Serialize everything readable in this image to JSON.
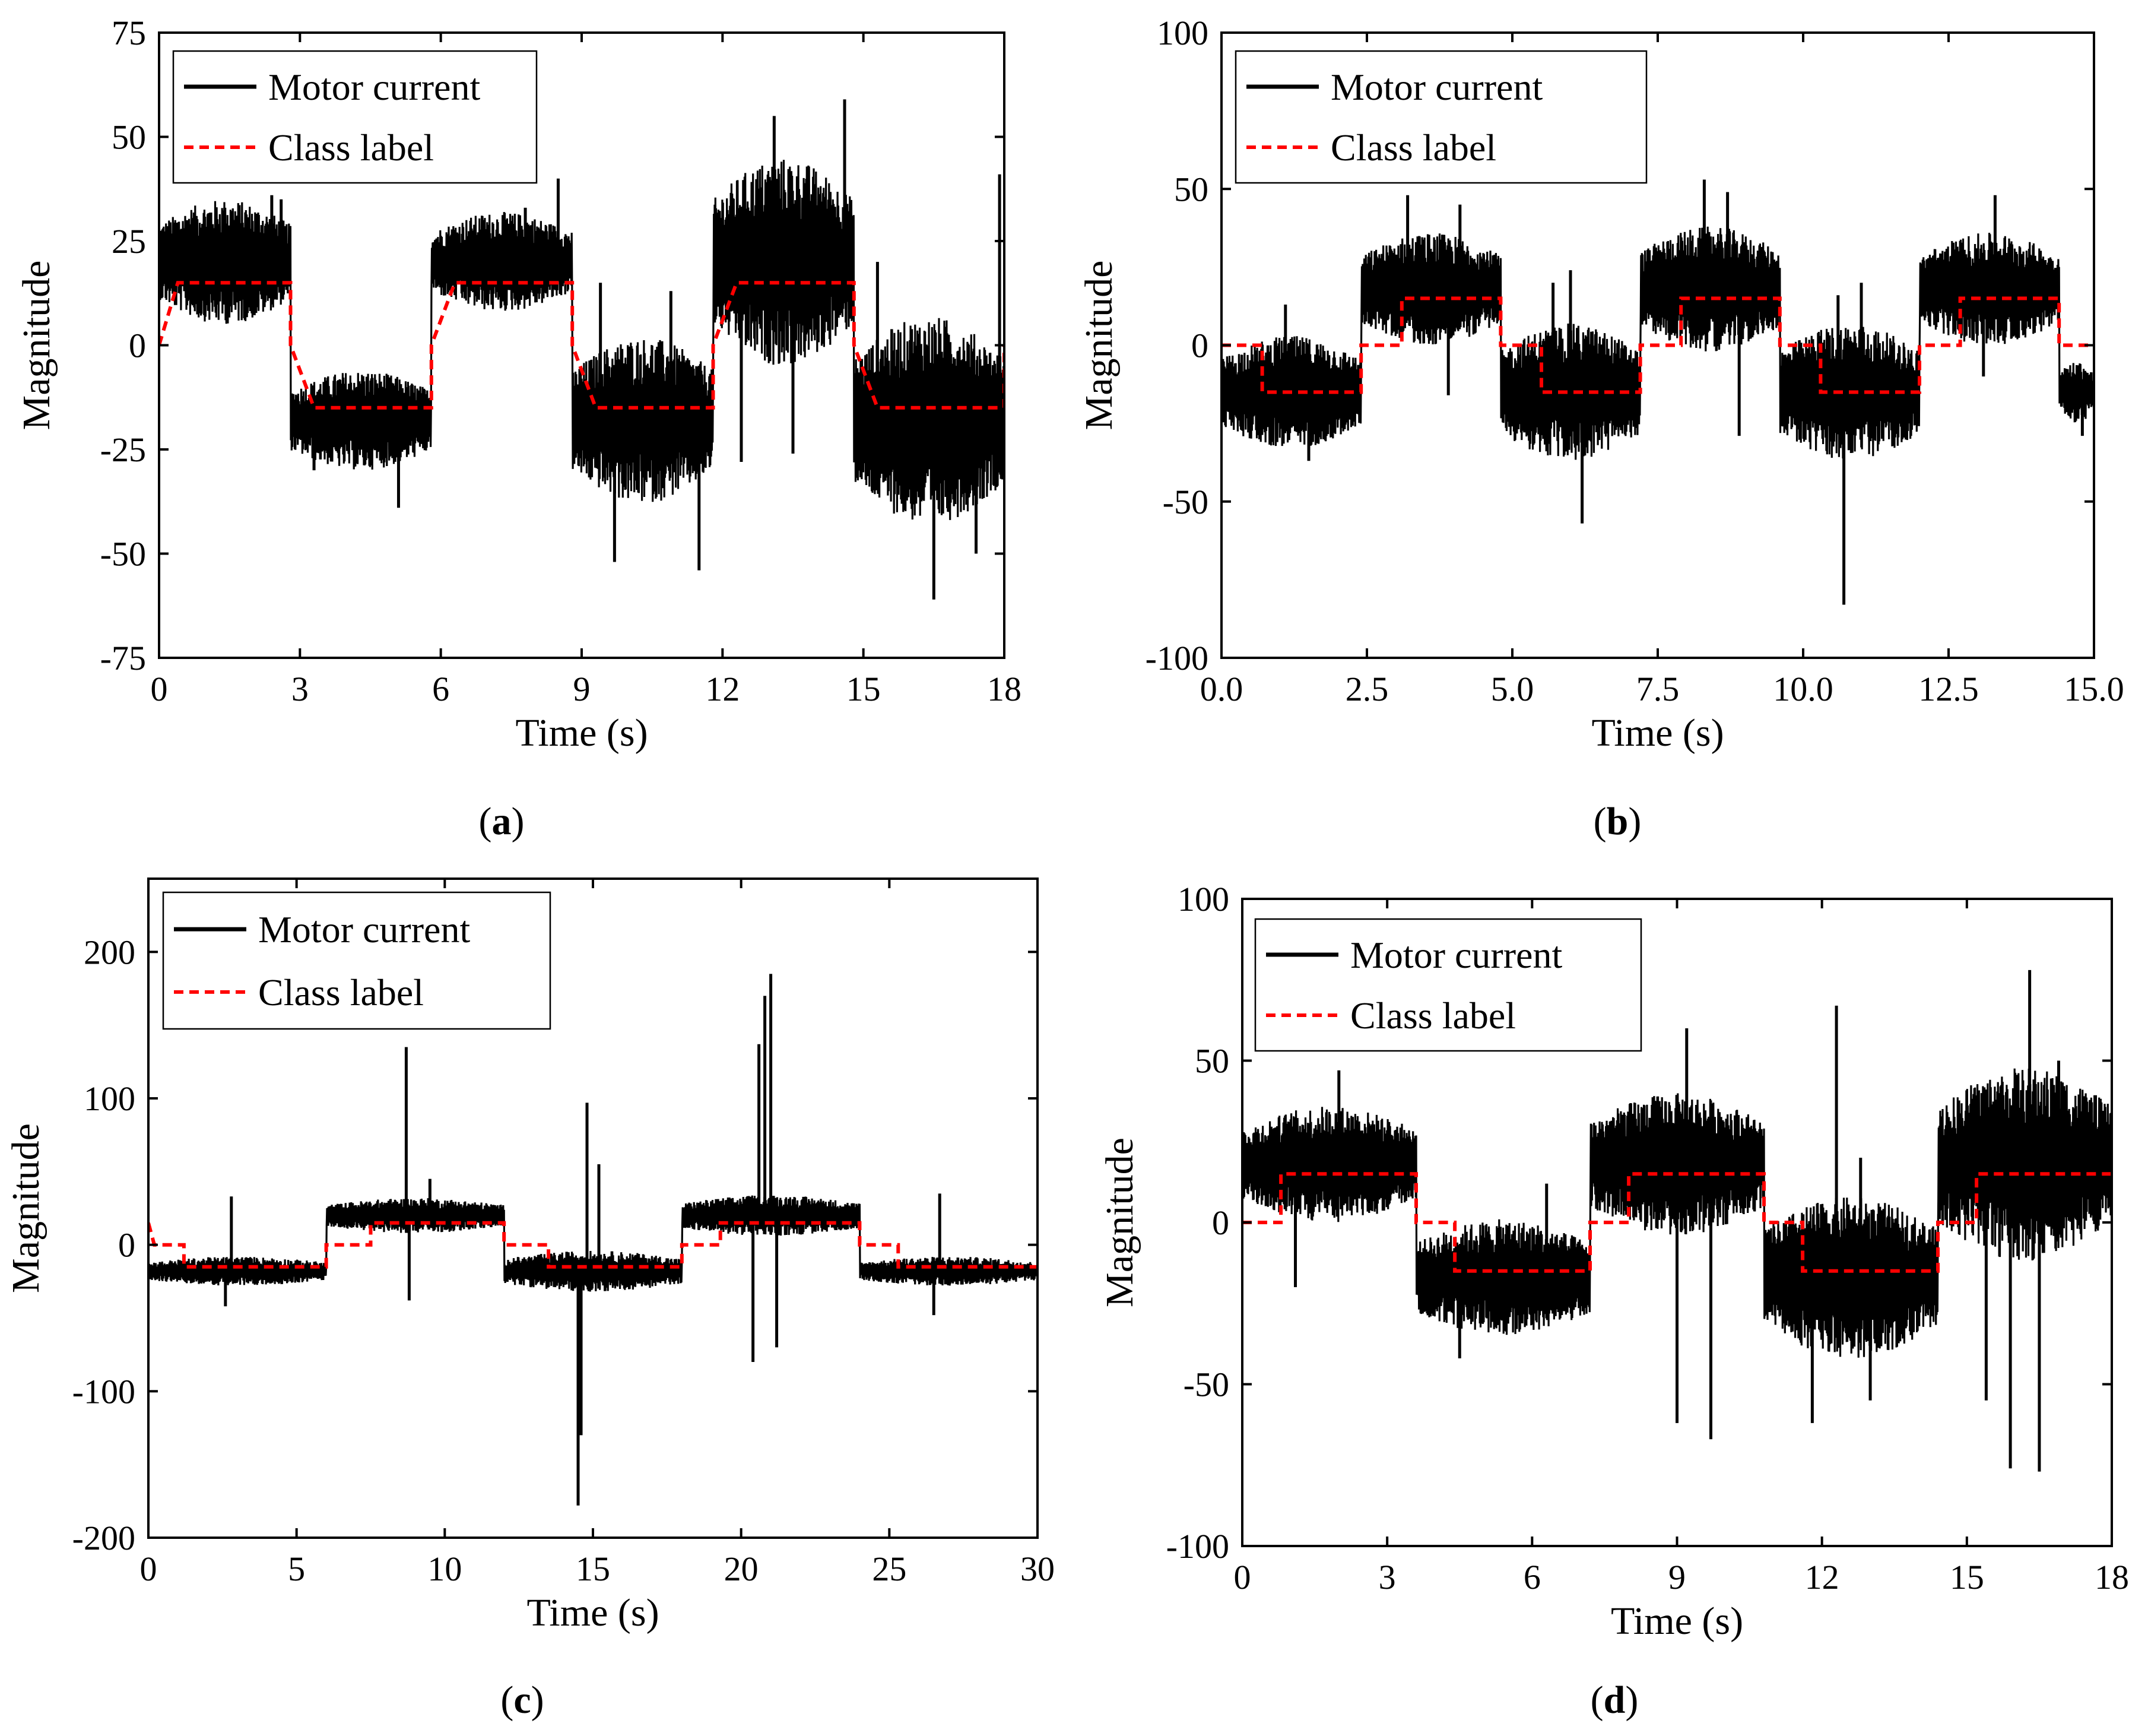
{
  "figure": {
    "caption_letters": [
      "a",
      "b",
      "c",
      "d"
    ]
  },
  "chart_data": [
    {
      "panel": "a",
      "type": "line",
      "xlabel": "Time (s)",
      "ylabel": "Magnitude",
      "xlim": [
        0,
        18
      ],
      "ylim": [
        -75,
        75
      ],
      "xticks": [
        0,
        3,
        6,
        9,
        12,
        15,
        18
      ],
      "yticks": [
        -75,
        -50,
        -25,
        0,
        25,
        50,
        75
      ],
      "xtick_labels": [
        "0",
        "3",
        "6",
        "9",
        "12",
        "15",
        "18"
      ],
      "ytick_labels": [
        "-75",
        "-50",
        "-25",
        "0",
        "25",
        "50",
        "75"
      ],
      "legend": {
        "position": "top-left",
        "entries": [
          "Motor current",
          "Class label"
        ]
      },
      "series": [
        {
          "name": "Motor current",
          "style": "solid",
          "color": "#000000",
          "segments": [
            {
              "t0": 0,
              "t1": 2.8,
              "level": 20,
              "spread": 15,
              "spikes": [
                [
                  0.6,
                  30
                ],
                [
                  1.4,
                  33
                ],
                [
                  2.4,
                  36
                ],
                [
                  2.6,
                  35
                ]
              ]
            },
            {
              "t0": 2.8,
              "t1": 5.8,
              "level": -18,
              "spread": 12,
              "spikes": [
                [
                  5.1,
                  -39
                ],
                [
                  3.3,
                  -30
                ]
              ]
            },
            {
              "t0": 5.8,
              "t1": 8.8,
              "level": 20,
              "spread": 12,
              "spikes": [
                [
                  8.5,
                  40
                ],
                [
                  7.8,
                  33
                ]
              ]
            },
            {
              "t0": 8.8,
              "t1": 11.8,
              "level": -18,
              "spread": 20,
              "spikes": [
                [
                  9.4,
                  15
                ],
                [
                  10.9,
                  13
                ],
                [
                  11.5,
                  -54
                ],
                [
                  9.7,
                  -52
                ]
              ]
            },
            {
              "t0": 11.8,
              "t1": 14.8,
              "level": 20,
              "spread": 25,
              "spikes": [
                [
                  13.1,
                  55
                ],
                [
                  14.6,
                  59
                ],
                [
                  12.4,
                  -28
                ],
                [
                  13.5,
                  -26
                ]
              ]
            },
            {
              "t0": 14.8,
              "t1": 18,
              "level": -18,
              "spread": 25,
              "spikes": [
                [
                  15.3,
                  20
                ],
                [
                  17.9,
                  41
                ],
                [
                  16.5,
                  -61
                ],
                [
                  17.4,
                  -50
                ]
              ]
            }
          ]
        },
        {
          "name": "Class label",
          "style": "dashed",
          "color": "#ff0000",
          "steps": [
            [
              0,
              0
            ],
            [
              0.4,
              15
            ],
            [
              2.8,
              15
            ],
            [
              2.8,
              0
            ],
            [
              3.3,
              -15
            ],
            [
              5.8,
              -15
            ],
            [
              5.8,
              0
            ],
            [
              6.3,
              15
            ],
            [
              8.8,
              15
            ],
            [
              8.8,
              0
            ],
            [
              9.3,
              -15
            ],
            [
              11.8,
              -15
            ],
            [
              11.8,
              0
            ],
            [
              12.3,
              15
            ],
            [
              14.8,
              15
            ],
            [
              14.8,
              0
            ],
            [
              15.3,
              -15
            ],
            [
              18,
              -15
            ],
            [
              18,
              0
            ]
          ]
        }
      ]
    },
    {
      "panel": "b",
      "type": "line",
      "xlabel": "Time (s)",
      "ylabel": "Magnitude",
      "xlim": [
        0,
        15
      ],
      "ylim": [
        -100,
        100
      ],
      "xticks": [
        0,
        2.5,
        5,
        7.5,
        10,
        12.5,
        15
      ],
      "yticks": [
        -100,
        -50,
        0,
        50,
        100
      ],
      "xtick_labels": [
        "0.0",
        "2.5",
        "5.0",
        "7.5",
        "10.0",
        "12.5",
        "15.0"
      ],
      "ytick_labels": [
        "-100",
        "-50",
        "0",
        "50",
        "100"
      ],
      "legend": {
        "position": "top-left",
        "entries": [
          "Motor current",
          "Class label"
        ]
      },
      "series": [
        {
          "name": "Motor current",
          "style": "solid",
          "color": "#000000",
          "segments": [
            {
              "t0": 0,
              "t1": 2.4,
              "level": -15,
              "spread": 18,
              "spikes": [
                [
                  1.1,
                  13
                ],
                [
                  1.5,
                  -37
                ]
              ]
            },
            {
              "t0": 2.4,
              "t1": 4.8,
              "level": 18,
              "spread": 18,
              "spikes": [
                [
                  3.2,
                  48
                ],
                [
                  4.1,
                  45
                ],
                [
                  3.9,
                  -16
                ]
              ]
            },
            {
              "t0": 4.8,
              "t1": 7.2,
              "level": -15,
              "spread": 22,
              "spikes": [
                [
                  6.2,
                  -57
                ],
                [
                  5.7,
                  20
                ],
                [
                  6.0,
                  24
                ]
              ]
            },
            {
              "t0": 7.2,
              "t1": 9.6,
              "level": 18,
              "spread": 20,
              "spikes": [
                [
                  8.3,
                  53
                ],
                [
                  8.9,
                  -29
                ],
                [
                  8.7,
                  49
                ]
              ]
            },
            {
              "t0": 9.6,
              "t1": 12.0,
              "level": -15,
              "spread": 22,
              "spikes": [
                [
                  10.7,
                  -83
                ],
                [
                  11.0,
                  20
                ],
                [
                  10.6,
                  16
                ]
              ]
            },
            {
              "t0": 12.0,
              "t1": 14.4,
              "level": 18,
              "spread": 18,
              "spikes": [
                [
                  13.3,
                  48
                ],
                [
                  13.1,
                  -10
                ]
              ]
            },
            {
              "t0": 14.4,
              "t1": 15,
              "level": -15,
              "spread": 10,
              "spikes": [
                [
                  14.8,
                  -29
                ]
              ]
            }
          ]
        },
        {
          "name": "Class label",
          "style": "dashed",
          "color": "#ff0000",
          "steps": [
            [
              0,
              0
            ],
            [
              0.7,
              0
            ],
            [
              0.7,
              -15
            ],
            [
              2.4,
              -15
            ],
            [
              2.4,
              0
            ],
            [
              3.1,
              0
            ],
            [
              3.1,
              15
            ],
            [
              4.8,
              15
            ],
            [
              4.8,
              0
            ],
            [
              5.5,
              0
            ],
            [
              5.5,
              -15
            ],
            [
              7.2,
              -15
            ],
            [
              7.2,
              0
            ],
            [
              7.9,
              0
            ],
            [
              7.9,
              15
            ],
            [
              9.6,
              15
            ],
            [
              9.6,
              0
            ],
            [
              10.3,
              0
            ],
            [
              10.3,
              -15
            ],
            [
              12.0,
              -15
            ],
            [
              12.0,
              0
            ],
            [
              12.7,
              0
            ],
            [
              12.7,
              15
            ],
            [
              14.4,
              15
            ],
            [
              14.4,
              0
            ],
            [
              15,
              0
            ]
          ]
        }
      ]
    },
    {
      "panel": "c",
      "type": "line",
      "xlabel": "Time (s)",
      "ylabel": "Magnitude",
      "xlim": [
        0,
        30
      ],
      "ylim": [
        -200,
        250
      ],
      "xticks": [
        0,
        5,
        10,
        15,
        20,
        25,
        30
      ],
      "yticks": [
        -200,
        -100,
        0,
        100,
        200
      ],
      "xtick_labels": [
        "0",
        "5",
        "10",
        "15",
        "20",
        "25",
        "30"
      ],
      "ytick_labels": [
        "-200",
        "-100",
        "0",
        "100",
        "200"
      ],
      "legend": {
        "position": "top-left",
        "entries": [
          "Motor current",
          "Class label"
        ]
      },
      "series": [
        {
          "name": "Motor current",
          "style": "solid",
          "color": "#000000",
          "segments": [
            {
              "t0": 0,
              "t1": 6,
              "level": -18,
              "spread": 10,
              "spikes": [
                [
                  2.8,
                  33
                ],
                [
                  2.6,
                  -42
                ]
              ]
            },
            {
              "t0": 6,
              "t1": 12,
              "level": 20,
              "spread": 12,
              "spikes": [
                [
                  8.7,
                  135
                ],
                [
                  8.8,
                  -38
                ],
                [
                  9.5,
                  45
                ]
              ]
            },
            {
              "t0": 12,
              "t1": 18,
              "level": -18,
              "spread": 14,
              "spikes": [
                [
                  14.5,
                  -178
                ],
                [
                  14.8,
                  97
                ],
                [
                  14.6,
                  -130
                ],
                [
                  15.2,
                  55
                ]
              ]
            },
            {
              "t0": 18,
              "t1": 24,
              "level": 20,
              "spread": 14,
              "spikes": [
                [
                  21.0,
                  185
                ],
                [
                  20.8,
                  170
                ],
                [
                  20.4,
                  -80
                ],
                [
                  21.2,
                  -70
                ],
                [
                  20.6,
                  137
                ]
              ]
            },
            {
              "t0": 24,
              "t1": 30,
              "level": -18,
              "spread": 10,
              "spikes": [
                [
                  26.7,
                  35
                ],
                [
                  26.5,
                  -48
                ]
              ]
            }
          ]
        },
        {
          "name": "Class label",
          "style": "dashed",
          "color": "#ff0000",
          "steps": [
            [
              0,
              15
            ],
            [
              0.2,
              0
            ],
            [
              1.2,
              0
            ],
            [
              1.2,
              -15
            ],
            [
              6,
              -15
            ],
            [
              6,
              0
            ],
            [
              7.5,
              0
            ],
            [
              7.5,
              15
            ],
            [
              12,
              15
            ],
            [
              12,
              0
            ],
            [
              13.5,
              0
            ],
            [
              13.5,
              -15
            ],
            [
              18,
              -15
            ],
            [
              18,
              0
            ],
            [
              19.3,
              0
            ],
            [
              19.3,
              15
            ],
            [
              24,
              15
            ],
            [
              24,
              0
            ],
            [
              25.3,
              0
            ],
            [
              25.3,
              -15
            ],
            [
              30,
              -15
            ]
          ]
        }
      ]
    },
    {
      "panel": "d",
      "type": "line",
      "xlabel": "Time (s)",
      "ylabel": "Magnitude",
      "xlim": [
        0,
        18
      ],
      "ylim": [
        -100,
        100
      ],
      "xticks": [
        0,
        3,
        6,
        9,
        12,
        15,
        18
      ],
      "yticks": [
        -100,
        -50,
        0,
        50,
        100
      ],
      "xtick_labels": [
        "0",
        "3",
        "6",
        "9",
        "12",
        "15",
        "18"
      ],
      "ytick_labels": [
        "-100",
        "-50",
        "0",
        "50",
        "100"
      ],
      "legend": {
        "position": "top-left",
        "entries": [
          "Motor current",
          "Class label"
        ]
      },
      "series": [
        {
          "name": "Motor current",
          "style": "solid",
          "color": "#000000",
          "segments": [
            {
              "t0": 0,
              "t1": 3.6,
              "level": 18,
              "spread": 18,
              "spikes": [
                [
                  2.0,
                  47
                ],
                [
                  1.1,
                  -20
                ]
              ]
            },
            {
              "t0": 3.6,
              "t1": 7.2,
              "level": -17,
              "spread": 18,
              "spikes": [
                [
                  4.5,
                  -42
                ],
                [
                  6.3,
                  12
                ]
              ]
            },
            {
              "t0": 7.2,
              "t1": 10.8,
              "level": 18,
              "spread": 22,
              "spikes": [
                [
                  9.2,
                  60
                ],
                [
                  9.7,
                  -67
                ],
                [
                  9.0,
                  -62
                ],
                [
                  8.5,
                  36
                ]
              ]
            },
            {
              "t0": 10.8,
              "t1": 14.4,
              "level": -17,
              "spread": 25,
              "spikes": [
                [
                  12.3,
                  67
                ],
                [
                  11.8,
                  -62
                ],
                [
                  13.0,
                  -55
                ],
                [
                  12.8,
                  20
                ]
              ]
            },
            {
              "t0": 14.4,
              "t1": 18,
              "level": 18,
              "spread": 30,
              "spikes": [
                [
                  16.3,
                  78
                ],
                [
                  16.5,
                  -77
                ],
                [
                  15.9,
                  -76
                ],
                [
                  16.9,
                  50
                ],
                [
                  15.4,
                  -55
                ]
              ]
            }
          ]
        },
        {
          "name": "Class label",
          "style": "dashed",
          "color": "#ff0000",
          "steps": [
            [
              0,
              0
            ],
            [
              0.8,
              0
            ],
            [
              0.8,
              15
            ],
            [
              3.6,
              15
            ],
            [
              3.6,
              0
            ],
            [
              4.4,
              0
            ],
            [
              4.4,
              -15
            ],
            [
              7.2,
              -15
            ],
            [
              7.2,
              0
            ],
            [
              8.0,
              0
            ],
            [
              8.0,
              15
            ],
            [
              10.8,
              15
            ],
            [
              10.8,
              0
            ],
            [
              11.6,
              0
            ],
            [
              11.6,
              -15
            ],
            [
              14.4,
              -15
            ],
            [
              14.4,
              0
            ],
            [
              15.2,
              0
            ],
            [
              15.2,
              15
            ],
            [
              18,
              15
            ]
          ]
        }
      ]
    }
  ]
}
